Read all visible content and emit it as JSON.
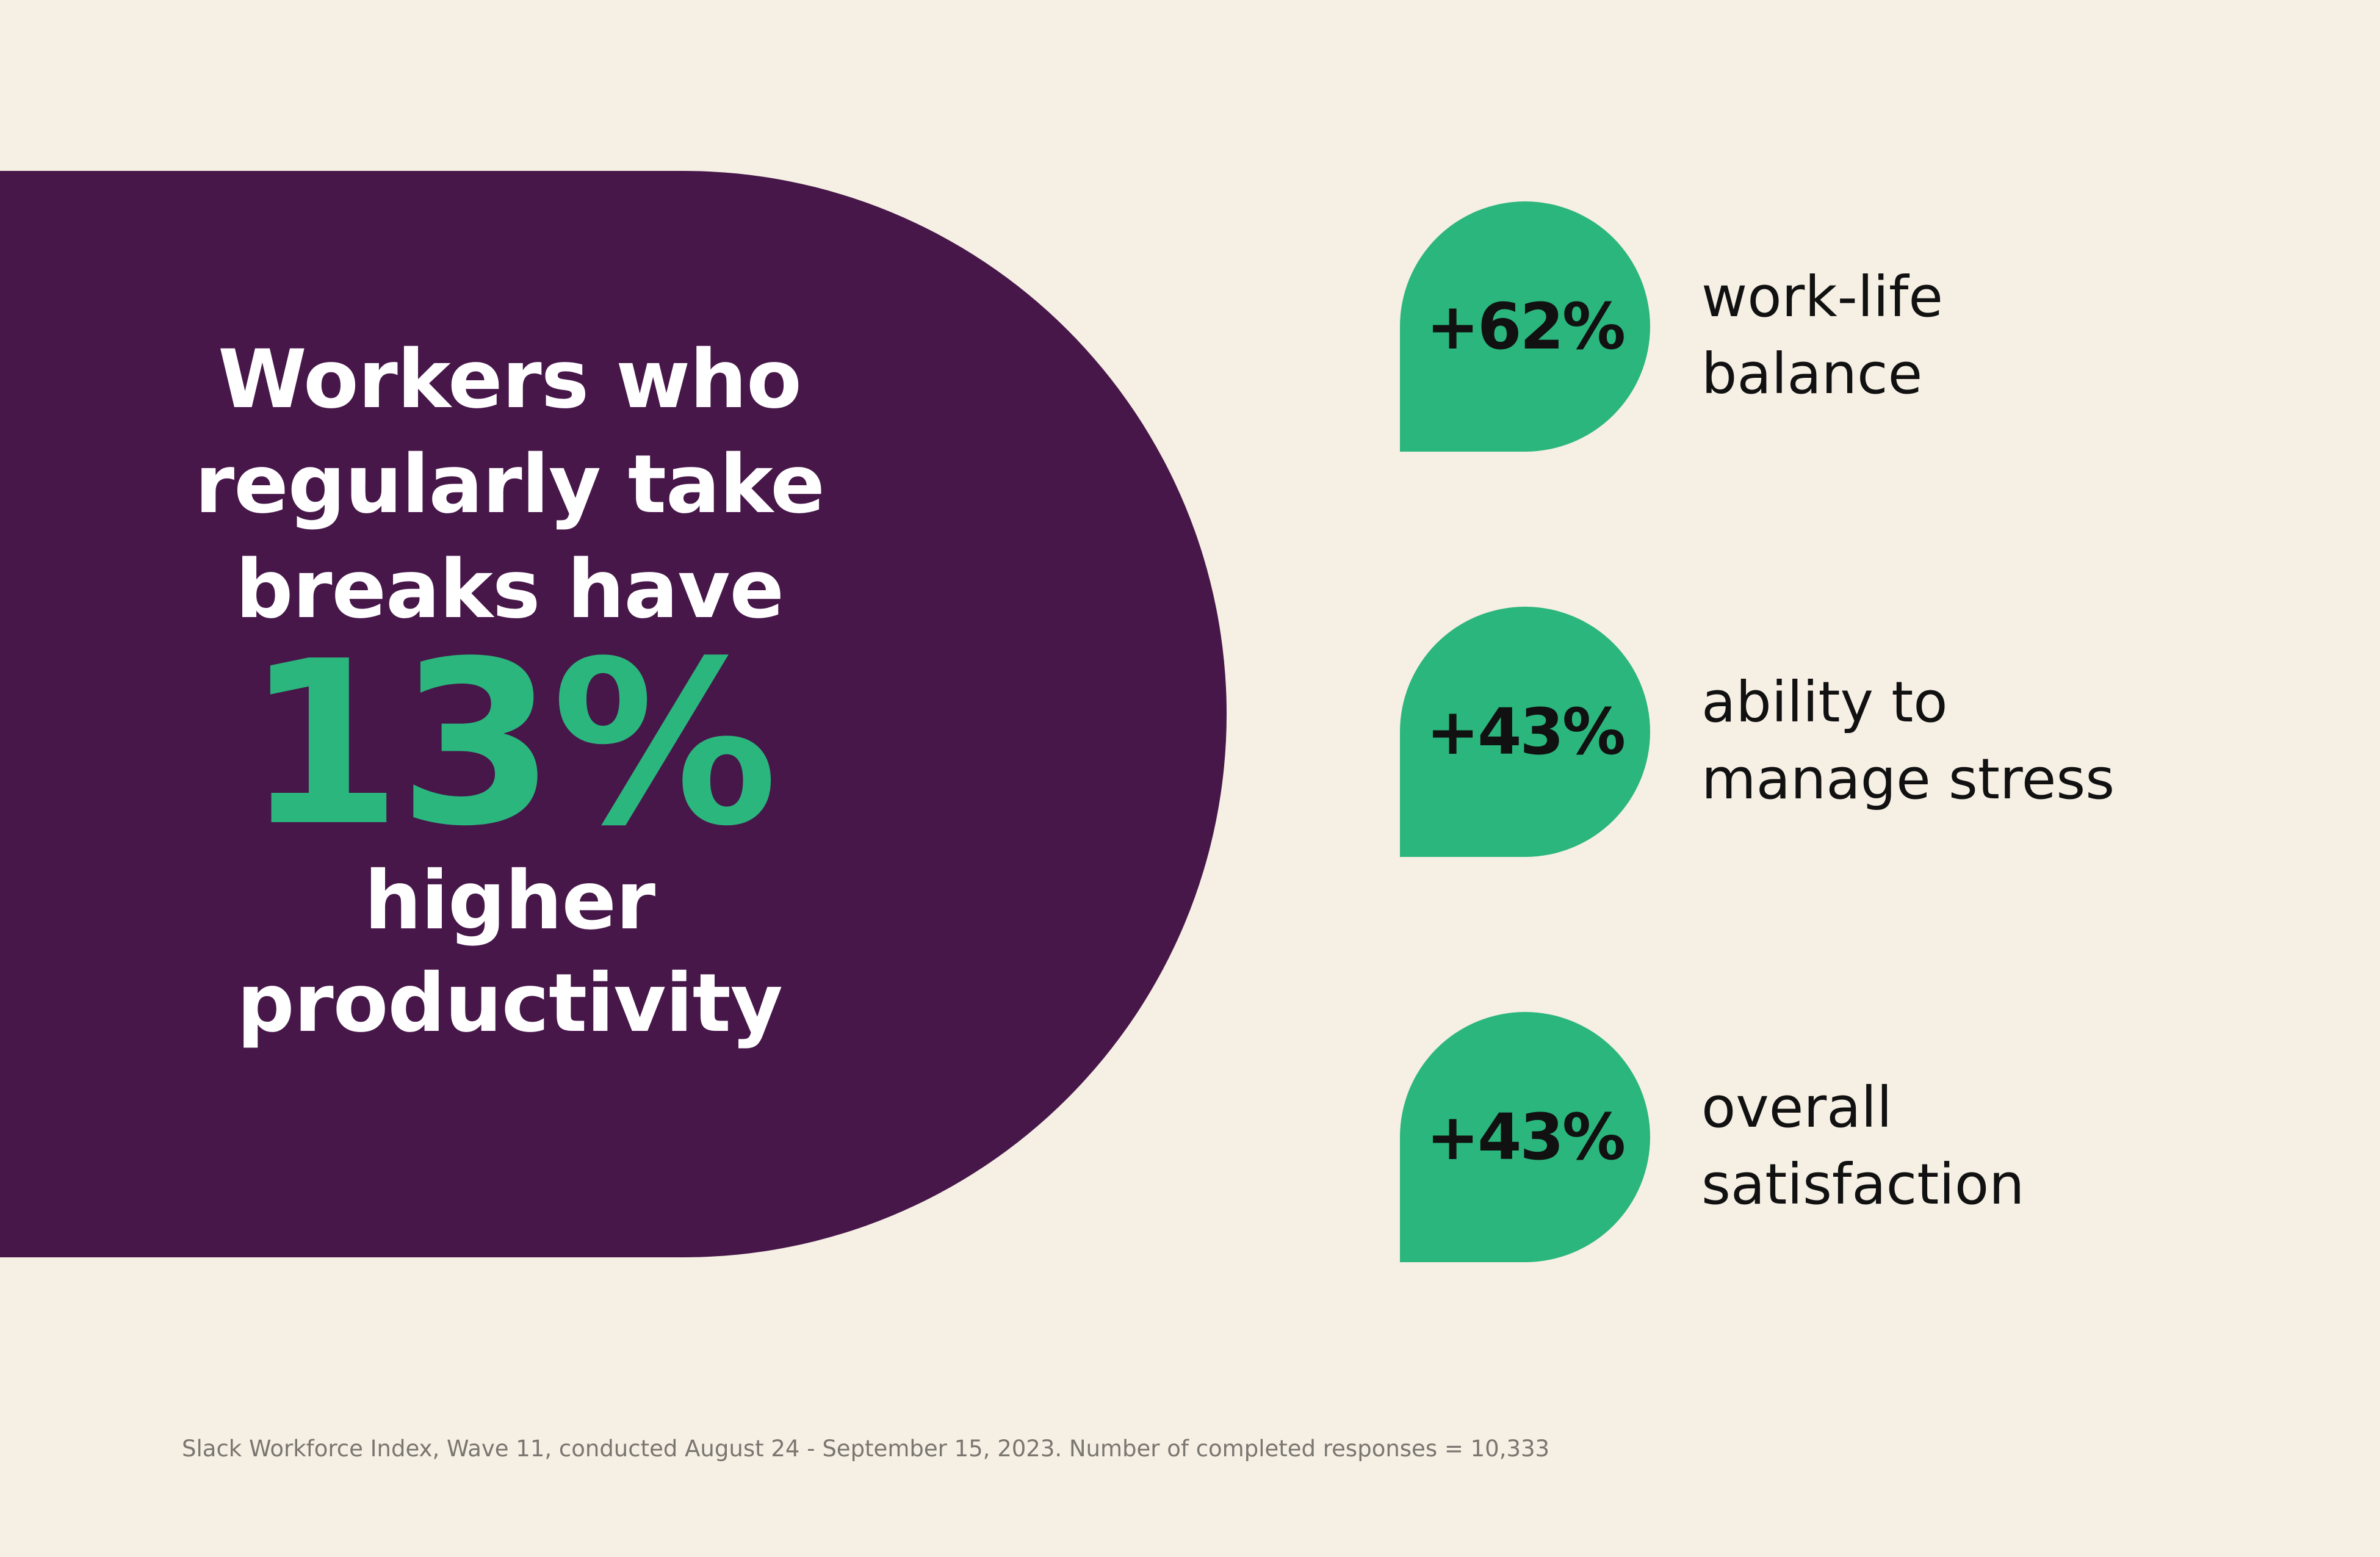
{
  "hero": {
    "intro_lines": [
      "Workers who",
      "regularly take",
      "breaks have"
    ],
    "big_value": "13%",
    "outro_lines": [
      "higher",
      "productivity"
    ]
  },
  "stats": [
    {
      "value": "+62%",
      "label_lines": [
        "work-life",
        "balance"
      ]
    },
    {
      "value": "+43%",
      "label_lines": [
        "ability to",
        "manage stress"
      ]
    },
    {
      "value": "+43%",
      "label_lines": [
        "overall",
        "satisfaction"
      ]
    }
  ],
  "footnote": "Slack Workforce Index, Wave 11, conducted August 24 - September 15, 2023. Number of completed responses = 10,333",
  "colors": {
    "background": "#F5EFE4",
    "purple": "#47174A",
    "green": "#2BB67D",
    "text_dark": "#111111",
    "footnote_gray": "#7A7670"
  }
}
